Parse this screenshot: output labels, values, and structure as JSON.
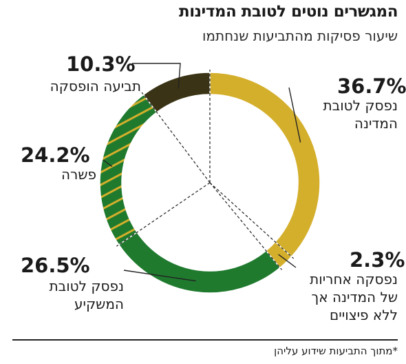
{
  "title": "המגשרים נוטים לטובת המדינות",
  "subtitle": "שיעור פסיקות מהתביעות שנחתמו",
  "footnote": "*מתוך התביעות שידוע עליהן",
  "chart_data": {
    "type": "pie",
    "style": "donut",
    "start_angle_deg": 0,
    "direction": "clockwise",
    "slices": [
      {
        "key": "state",
        "value": 36.7,
        "pct_label": "36.7%",
        "label_lines": [
          "נפסק לטובת",
          "המדינה"
        ],
        "color": "#d4af2c",
        "pattern": "solid"
      },
      {
        "key": "state_no_comp",
        "value": 2.3,
        "pct_label": "2.3%",
        "label_lines": [
          "נפסקה אחריות",
          "של המדינה אך",
          "ללא פיצויים"
        ],
        "color": "#d4af2c",
        "pattern": "solid"
      },
      {
        "key": "investor",
        "value": 26.5,
        "pct_label": "26.5%",
        "label_lines": [
          "נפסק לטובת",
          "המשקיע"
        ],
        "color": "#1f7a2e",
        "pattern": "solid"
      },
      {
        "key": "settlement",
        "value": 24.2,
        "pct_label": "24.2%",
        "label_lines": [
          "פשרה"
        ],
        "color": "#1f7a2e",
        "pattern": "stripes",
        "stripe_color": "#d4af2c"
      },
      {
        "key": "discontinued",
        "value": 10.3,
        "pct_label": "10.3%",
        "label_lines": [
          "תביעה הופסקה"
        ],
        "color": "#3a3315",
        "pattern": "solid"
      }
    ]
  }
}
